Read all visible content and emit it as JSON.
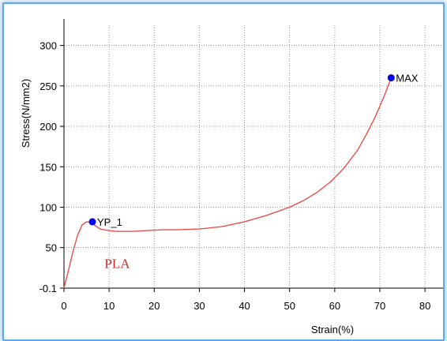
{
  "chart_data": {
    "type": "line",
    "title": "",
    "xlabel": "Strain(%)",
    "ylabel": "Stress(N/mm2)",
    "xlim": [
      0,
      84
    ],
    "ylim": [
      -0.1,
      325
    ],
    "x_ticks": [
      "0",
      "10",
      "20",
      "30",
      "40",
      "50",
      "60",
      "70",
      "80"
    ],
    "x_tick_values": [
      0,
      10,
      20,
      30,
      40,
      50,
      60,
      70,
      80
    ],
    "y_ticks": [
      "-0.1",
      "50",
      "100",
      "150",
      "200",
      "250",
      "300"
    ],
    "y_tick_values": [
      -0.1,
      50,
      100,
      150,
      200,
      250,
      300
    ],
    "grid": true,
    "series": [
      {
        "color": "#e8504f",
        "x": [
          0,
          1,
          2,
          3,
          4,
          5,
          6,
          7,
          8,
          10,
          12,
          15,
          18,
          22,
          25,
          30,
          35,
          40,
          45,
          50,
          53,
          56,
          59,
          62,
          65,
          67,
          69,
          71,
          72.5
        ],
        "y": [
          0,
          22,
          45,
          65,
          78,
          82,
          81,
          77,
          73,
          71,
          70,
          70,
          71,
          72,
          72,
          73,
          76,
          82,
          90,
          100,
          108,
          118,
          131,
          148,
          170,
          190,
          212,
          238,
          260
        ]
      }
    ],
    "points": [
      {
        "label": "YP_1",
        "x": 6.3,
        "y": 82,
        "color": "#0000ee"
      },
      {
        "label": "MAX",
        "x": 72.5,
        "y": 260,
        "color": "#0000ee"
      }
    ],
    "annotations": [
      {
        "text": "PLA",
        "x": 9,
        "y": 25,
        "color": "#c62828"
      }
    ],
    "colors": {
      "grid": "#9a9a9a",
      "axis": "#000000",
      "frame_border": "#62a8e0"
    }
  }
}
